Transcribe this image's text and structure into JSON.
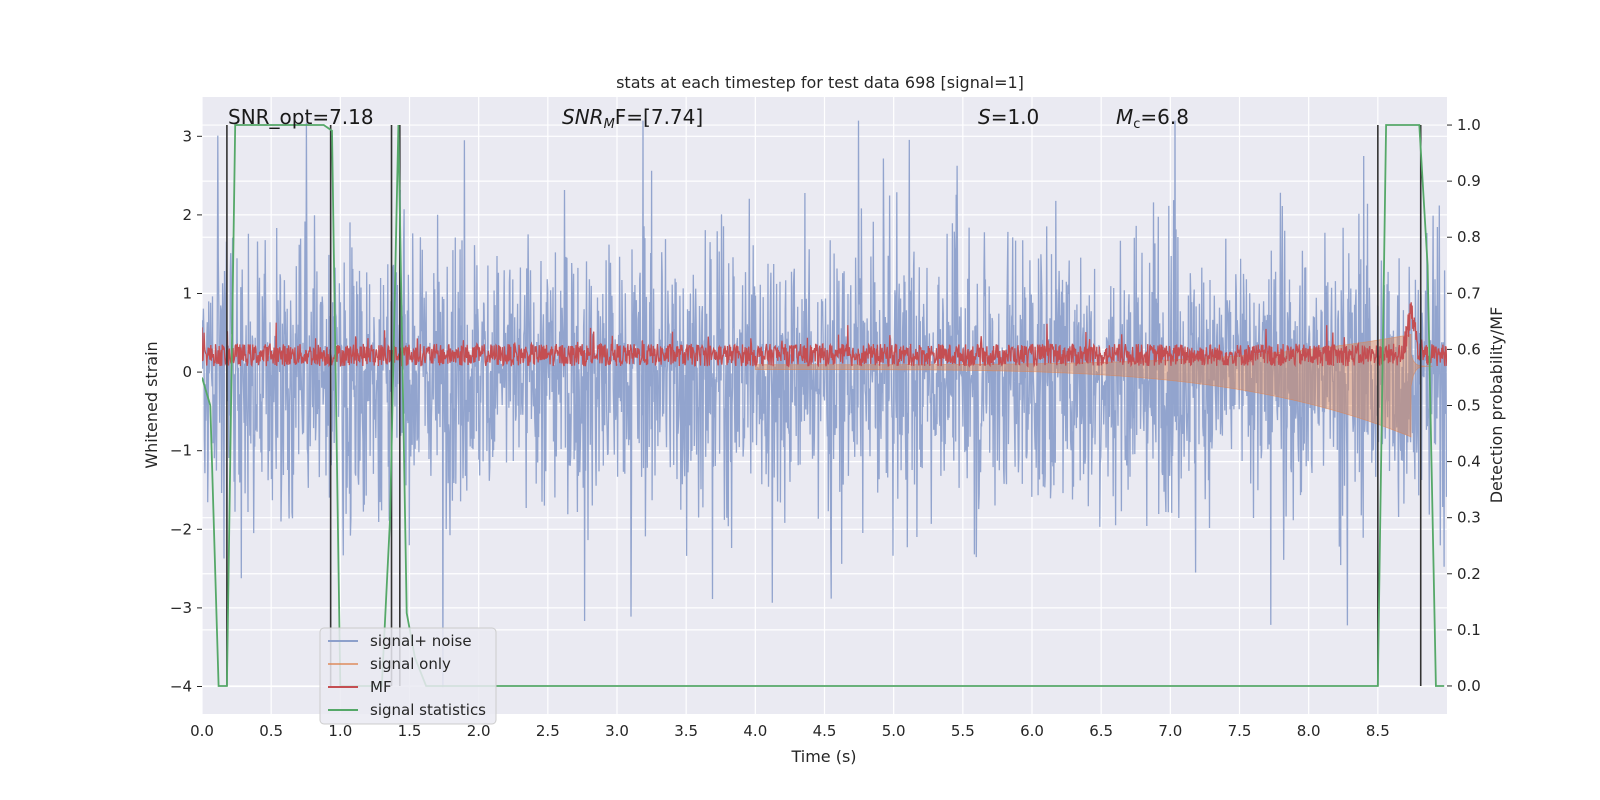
{
  "chart_data": {
    "type": "line",
    "title": "stats at each timestep for test data 698 [signal=1]",
    "xlabel": "Time (s)",
    "ylabel_left": "Whitened strain",
    "ylabel_right": "Detection probability/MF",
    "xlim": [
      0,
      9
    ],
    "ylim_left": [
      -4.35,
      3.5
    ],
    "ylim_right": [
      -0.05,
      1.05
    ],
    "x_ticks": [
      "0.0",
      "0.5",
      "1.0",
      "1.5",
      "2.0",
      "2.5",
      "3.0",
      "3.5",
      "4.0",
      "4.5",
      "5.0",
      "5.5",
      "6.0",
      "6.5",
      "7.0",
      "7.5",
      "8.0",
      "8.5"
    ],
    "y_ticks_left": [
      "3",
      "2",
      "1",
      "0",
      "−1",
      "−2",
      "−3",
      "−4"
    ],
    "y_ticks_right": [
      "1.0",
      "0.9",
      "0.8",
      "0.7",
      "0.6",
      "0.5",
      "0.4",
      "0.3",
      "0.2",
      "0.1",
      "0.0"
    ],
    "grid": true,
    "legend_position": "bottom-left",
    "annotations": {
      "snr_opt": "SNR_opt=7.18",
      "snr_mf_italic": "SNR",
      "snr_mf_sub": "M",
      "snr_mf_rest": "F=[7.74]",
      "s_italic": "S",
      "s_rest": "=1.0",
      "mc_italic": "M",
      "mc_sub": "c",
      "mc_rest": "=6.8"
    },
    "colors": {
      "signal_noise": "#8da0cb",
      "signal_only": "#dd8452",
      "mf": "#c44e52",
      "signal_statistics": "#55a868",
      "vertical_lines": "#333333",
      "background": "#eaeaf2"
    },
    "series": [
      {
        "name": "signal+ noise",
        "axis": "left",
        "description_values": "noise band approx amplitude ±1.5, spikes to ±3"
      },
      {
        "name": "signal only",
        "axis": "right",
        "chirp_peak_time": 8.74,
        "chirp_peak_amplitude": 0.12
      },
      {
        "name": "MF",
        "axis": "right",
        "baseline": 0.59,
        "peak_time": 8.74,
        "peak_value": 0.7
      },
      {
        "name": "signal statistics",
        "axis": "right",
        "x": [
          0.0,
          0.06,
          0.12,
          0.18,
          0.24,
          0.3,
          0.4,
          0.6,
          0.8,
          0.88,
          0.94,
          1.0,
          1.1,
          1.2,
          1.3,
          1.36,
          1.42,
          1.48,
          1.54,
          1.62,
          1.7,
          2.0,
          3.0,
          4.0,
          5.0,
          6.0,
          7.0,
          8.0,
          8.5,
          8.56,
          8.62,
          8.7,
          8.8,
          8.86,
          8.92,
          8.98
        ],
        "values": [
          0.55,
          0.5,
          0.0,
          0.0,
          1.0,
          1.0,
          1.0,
          1.0,
          1.0,
          1.0,
          0.99,
          0.0,
          0.0,
          0.0,
          0.0,
          0.3,
          1.0,
          0.13,
          0.05,
          0.0,
          0.0,
          0.0,
          0.0,
          0.0,
          0.0,
          0.0,
          0.0,
          0.0,
          0.0,
          1.0,
          1.0,
          1.0,
          1.0,
          0.75,
          0.0,
          0.0
        ]
      }
    ],
    "vertical_lines_x": [
      0.18,
      0.93,
      1.37,
      1.43,
      8.5,
      8.81
    ],
    "legend": [
      "signal+ noise",
      "signal only",
      "MF",
      "signal statistics"
    ]
  }
}
